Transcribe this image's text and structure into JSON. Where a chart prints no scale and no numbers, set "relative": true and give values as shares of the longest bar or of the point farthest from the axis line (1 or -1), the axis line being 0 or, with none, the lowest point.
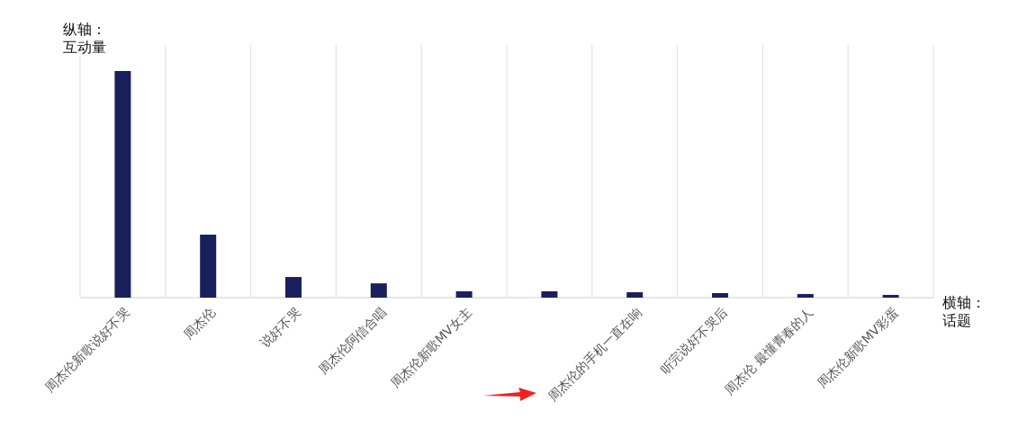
{
  "chart_data": {
    "type": "bar",
    "relative": true,
    "ylabel": "纵轴：互动量",
    "xlabel": "横轴：话题",
    "categories": [
      "周杰伦新歌说好不哭",
      "周杰伦",
      "说好不哭",
      "周杰伦阿信合唱",
      "周杰伦新歌MV女主",
      null,
      "周杰伦的手机一直在响",
      "听完说好不哭后",
      "周杰伦 最懂青春的人",
      "周杰伦新歌MV彩蛋"
    ],
    "values": [
      1,
      0.278,
      0.091,
      0.063,
      0.028,
      0.028,
      0.024,
      0.02,
      0.016,
      0.012
    ],
    "color": "#1a1f5e",
    "grid": "x"
  }
}
